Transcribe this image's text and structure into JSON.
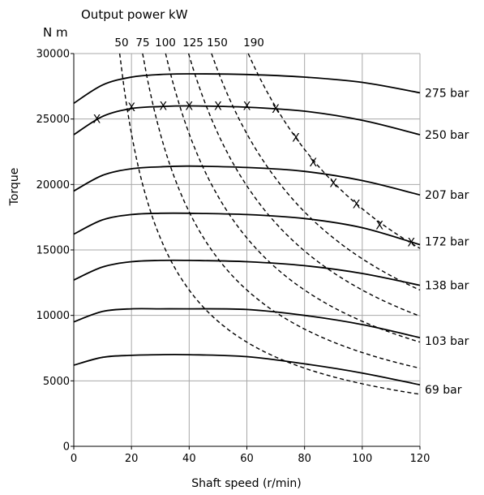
{
  "chart_data": {
    "type": "line",
    "top_title": "Output power kW",
    "ylabel_unit": "N m",
    "ylabel": "Torque",
    "xlabel": "Shaft speed (r/min)",
    "xlim": [
      0,
      120
    ],
    "ylim": [
      0,
      30000
    ],
    "x_ticks": [
      0,
      20,
      40,
      60,
      80,
      100,
      120
    ],
    "y_ticks": [
      0,
      5000,
      10000,
      15000,
      20000,
      25000,
      30000
    ],
    "grid": true,
    "pressure_series": [
      {
        "name": "275 bar",
        "x": [
          0,
          10,
          20,
          30,
          40,
          60,
          80,
          100,
          120
        ],
        "y": [
          26200,
          27600,
          28200,
          28400,
          28450,
          28400,
          28200,
          27800,
          27000
        ]
      },
      {
        "name": "250 bar",
        "x": [
          0,
          10,
          20,
          30,
          40,
          60,
          80,
          100,
          120
        ],
        "y": [
          23800,
          25200,
          25800,
          25950,
          26000,
          25900,
          25600,
          24900,
          23800
        ]
      },
      {
        "name": "207 bar",
        "x": [
          0,
          10,
          20,
          30,
          40,
          60,
          80,
          100,
          120
        ],
        "y": [
          19500,
          20700,
          21200,
          21350,
          21400,
          21300,
          21000,
          20300,
          19200
        ]
      },
      {
        "name": "172 bar",
        "x": [
          0,
          10,
          20,
          30,
          40,
          60,
          80,
          100,
          120
        ],
        "y": [
          16200,
          17300,
          17700,
          17800,
          17800,
          17700,
          17400,
          16700,
          15400
        ]
      },
      {
        "name": "138 bar",
        "x": [
          0,
          10,
          20,
          30,
          40,
          60,
          80,
          100,
          120
        ],
        "y": [
          12700,
          13700,
          14100,
          14200,
          14200,
          14100,
          13800,
          13200,
          12300
        ]
      },
      {
        "name": "103 bar",
        "x": [
          0,
          10,
          20,
          30,
          40,
          60,
          80,
          100,
          120
        ],
        "y": [
          9500,
          10300,
          10500,
          10500,
          10500,
          10450,
          10000,
          9300,
          8300
        ]
      },
      {
        "name": "69 bar",
        "x": [
          0,
          10,
          20,
          30,
          40,
          60,
          80,
          100,
          120
        ],
        "y": [
          6200,
          6800,
          6950,
          7000,
          7000,
          6850,
          6300,
          5600,
          4700
        ]
      }
    ],
    "power_series": [
      {
        "name": "50",
        "kw": 50
      },
      {
        "name": "75",
        "kw": 75
      },
      {
        "name": "100",
        "kw": 100
      },
      {
        "name": "125",
        "kw": 125
      },
      {
        "name": "150",
        "kw": 150
      },
      {
        "name": "190",
        "kw": 190
      }
    ],
    "operating_points": {
      "x": [
        8,
        20,
        31,
        40,
        50,
        60,
        70,
        77,
        83,
        90,
        98,
        106,
        117
      ],
      "y": [
        25000,
        25900,
        26000,
        26000,
        26000,
        26000,
        25800,
        23600,
        21700,
        20100,
        18500,
        16900,
        15600
      ]
    },
    "marker_label": "X"
  }
}
